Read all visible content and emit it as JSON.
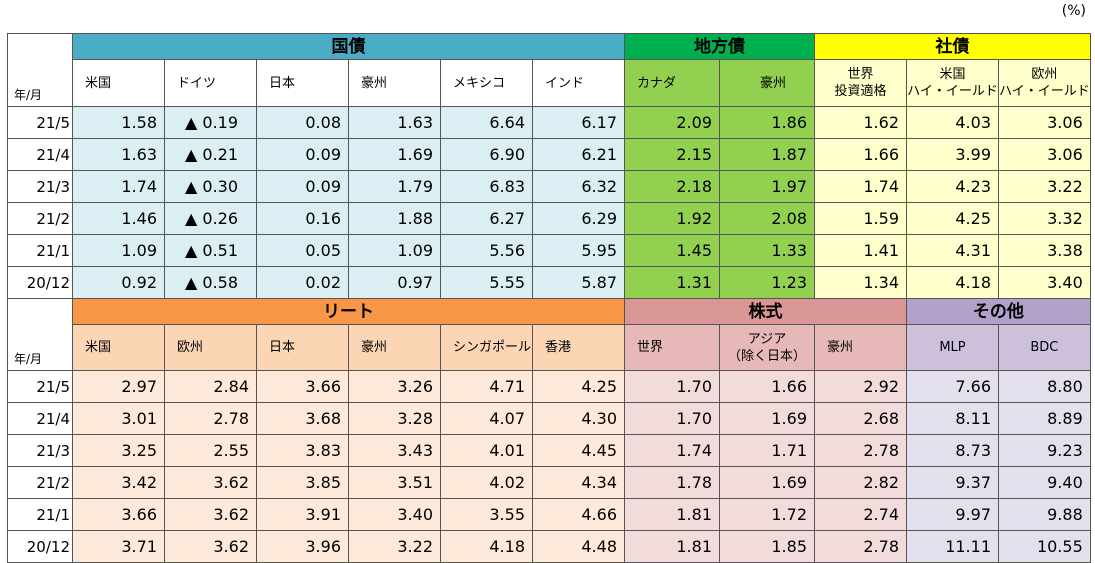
{
  "unit": "(%)",
  "year_month_label": "年/月",
  "table1": {
    "groups": [
      {
        "label": "国債",
        "span": 6,
        "color": "#4bacc6"
      },
      {
        "label": "地方債",
        "span": 2,
        "color": "#00b050"
      },
      {
        "label": "社債",
        "span": 3,
        "color": "#ffff00"
      }
    ],
    "columns": [
      {
        "label": "米国",
        "cell": "#dbeef3",
        "sub": "#ffffff"
      },
      {
        "label": "ドイツ",
        "cell": "#dbeef3",
        "sub": "#ffffff"
      },
      {
        "label": "日本",
        "cell": "#dbeef3",
        "sub": "#ffffff"
      },
      {
        "label": "豪州",
        "cell": "#dbeef3",
        "sub": "#ffffff"
      },
      {
        "label": "メキシコ",
        "cell": "#dbeef3",
        "sub": "#ffffff"
      },
      {
        "label": "インド",
        "cell": "#dbeef3",
        "sub": "#ffffff"
      },
      {
        "label": "カナダ",
        "cell": "#92d050",
        "sub": "#92d050"
      },
      {
        "label": "豪州",
        "cell": "#92d050",
        "sub": "#92d050"
      },
      {
        "label": "世界\n投資適格",
        "cell": "#ffffcc",
        "sub": "#ffffcc"
      },
      {
        "label": "米国\nハイ・イールド",
        "cell": "#ffffcc",
        "sub": "#ffffcc"
      },
      {
        "label": "欧州\nハイ・イールド",
        "cell": "#ffffcc",
        "sub": "#ffffcc"
      }
    ],
    "rows": [
      {
        "date": "21/5",
        "values": [
          "1.58",
          "▲ 0.19",
          "0.08",
          "1.63",
          "6.64",
          "6.17",
          "2.09",
          "1.86",
          "1.62",
          "4.03",
          "3.06"
        ]
      },
      {
        "date": "21/4",
        "values": [
          "1.63",
          "▲ 0.21",
          "0.09",
          "1.69",
          "6.90",
          "6.21",
          "2.15",
          "1.87",
          "1.66",
          "3.99",
          "3.06"
        ]
      },
      {
        "date": "21/3",
        "values": [
          "1.74",
          "▲ 0.30",
          "0.09",
          "1.79",
          "6.83",
          "6.32",
          "2.18",
          "1.97",
          "1.74",
          "4.23",
          "3.22"
        ]
      },
      {
        "date": "21/2",
        "values": [
          "1.46",
          "▲ 0.26",
          "0.16",
          "1.88",
          "6.27",
          "6.29",
          "1.92",
          "2.08",
          "1.59",
          "4.25",
          "3.32"
        ]
      },
      {
        "date": "21/1",
        "values": [
          "1.09",
          "▲ 0.51",
          "0.05",
          "1.09",
          "5.56",
          "5.95",
          "1.45",
          "1.33",
          "1.41",
          "4.31",
          "3.38"
        ]
      },
      {
        "date": "20/12",
        "values": [
          "0.92",
          "▲ 0.58",
          "0.02",
          "0.97",
          "5.55",
          "5.87",
          "1.31",
          "1.23",
          "1.34",
          "4.18",
          "3.40"
        ]
      }
    ]
  },
  "table2": {
    "groups": [
      {
        "label": "リート",
        "span": 6,
        "color": "#f79646"
      },
      {
        "label": "株式",
        "span": 3,
        "color": "#da9694"
      },
      {
        "label": "その他",
        "span": 2,
        "color": "#b1a0c7"
      }
    ],
    "columns": [
      {
        "label": "米国",
        "cell": "#fde9d9",
        "sub": "#fcd5b4"
      },
      {
        "label": "欧州",
        "cell": "#fde9d9",
        "sub": "#fcd5b4"
      },
      {
        "label": "日本",
        "cell": "#fde9d9",
        "sub": "#fcd5b4"
      },
      {
        "label": "豪州",
        "cell": "#fde9d9",
        "sub": "#fcd5b4"
      },
      {
        "label": "シンガポール",
        "cell": "#fde9d9",
        "sub": "#fcd5b4"
      },
      {
        "label": "香港",
        "cell": "#fde9d9",
        "sub": "#fcd5b4"
      },
      {
        "label": "世界",
        "cell": "#f2dcdb",
        "sub": "#e6b8b7"
      },
      {
        "label": "アジア\n（除く日本）",
        "cell": "#f2dcdb",
        "sub": "#e6b8b7"
      },
      {
        "label": "豪州",
        "cell": "#f2dcdb",
        "sub": "#e6b8b7"
      },
      {
        "label": "MLP",
        "cell": "#e4dfec",
        "sub": "#ccc0da"
      },
      {
        "label": "BDC",
        "cell": "#e4dfec",
        "sub": "#ccc0da"
      }
    ],
    "rows": [
      {
        "date": "21/5",
        "values": [
          "2.97",
          "2.84",
          "3.66",
          "3.26",
          "4.71",
          "4.25",
          "1.70",
          "1.66",
          "2.92",
          "7.66",
          "8.80"
        ]
      },
      {
        "date": "21/4",
        "values": [
          "3.01",
          "2.78",
          "3.68",
          "3.28",
          "4.07",
          "4.30",
          "1.70",
          "1.69",
          "2.68",
          "8.11",
          "8.89"
        ]
      },
      {
        "date": "21/3",
        "values": [
          "3.25",
          "2.55",
          "3.83",
          "3.43",
          "4.01",
          "4.45",
          "1.74",
          "1.71",
          "2.78",
          "8.73",
          "9.23"
        ]
      },
      {
        "date": "21/2",
        "values": [
          "3.42",
          "3.62",
          "3.85",
          "3.51",
          "4.02",
          "4.34",
          "1.78",
          "1.69",
          "2.82",
          "9.37",
          "9.40"
        ]
      },
      {
        "date": "21/1",
        "values": [
          "3.66",
          "3.62",
          "3.91",
          "3.40",
          "3.55",
          "4.66",
          "1.81",
          "1.72",
          "2.74",
          "9.97",
          "9.88"
        ]
      },
      {
        "date": "20/12",
        "values": [
          "3.71",
          "3.62",
          "3.96",
          "3.22",
          "4.18",
          "4.48",
          "1.81",
          "1.85",
          "2.78",
          "11.11",
          "10.55"
        ]
      }
    ]
  }
}
